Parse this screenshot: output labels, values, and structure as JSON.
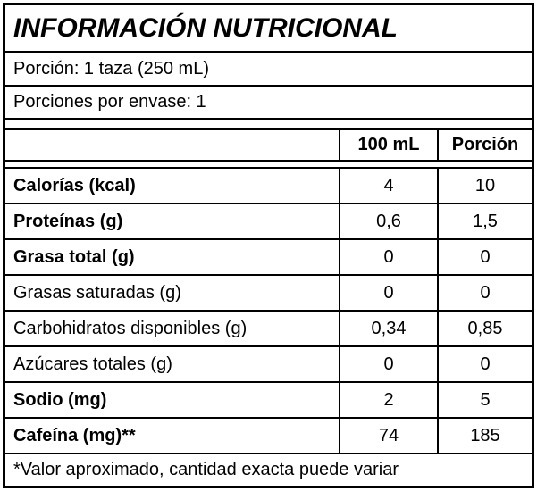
{
  "title": "INFORMACIÓN NUTRICIONAL",
  "serving": {
    "portion": "Porción: 1 taza (250 mL)",
    "per_container": "Porciones por envase: 1"
  },
  "table": {
    "col_headers": [
      "100 mL",
      "Porción"
    ],
    "rows": [
      {
        "label": "Calorías (kcal)",
        "bold": true,
        "per_100ml": "4",
        "per_portion": "10"
      },
      {
        "label": "Proteínas (g)",
        "bold": true,
        "per_100ml": "0,6",
        "per_portion": "1,5"
      },
      {
        "label": "Grasa total (g)",
        "bold": true,
        "per_100ml": "0",
        "per_portion": "0"
      },
      {
        "label": "Grasas saturadas (g)",
        "bold": false,
        "per_100ml": "0",
        "per_portion": "0"
      },
      {
        "label": "Carbohidratos disponibles (g)",
        "bold": false,
        "per_100ml": "0,34",
        "per_portion": "0,85"
      },
      {
        "label": "Azúcares totales (g)",
        "bold": false,
        "per_100ml": "0",
        "per_portion": "0"
      },
      {
        "label": "Sodio (mg)",
        "bold": true,
        "per_100ml": "2",
        "per_portion": "5"
      },
      {
        "label": "Cafeína (mg)**",
        "bold": true,
        "per_100ml": "74",
        "per_portion": "185"
      }
    ]
  },
  "footnote": "*Valor aproximado, cantidad exacta puede variar",
  "colors": {
    "border": "#000000",
    "background": "#ffffff",
    "text": "#000000"
  }
}
